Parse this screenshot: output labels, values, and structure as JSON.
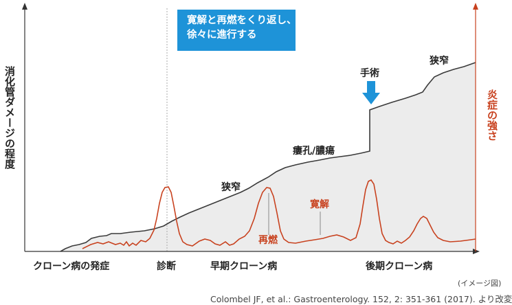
{
  "axes": {
    "y_left_label": "消化管ダメージの程度",
    "y_right_label": "炎症の強さ"
  },
  "callout": {
    "line1": "寛解と再燃をくり返し、",
    "line2": "徐々に進行する"
  },
  "annotations": {
    "surgery": "手術",
    "stenosis_early": "狭窄",
    "stenosis_late": "狭窄",
    "fistula": "瘻孔/膿瘍",
    "relapse": "再燃",
    "remission": "寛解"
  },
  "timeline": {
    "onset": "クローン病の発症",
    "diagnosis": "診断",
    "early": "早期クローン病",
    "late": "後期クローン病"
  },
  "footer": {
    "image_note": "(イメージ図)",
    "citation": "Colombel JF, et al.: Gastroenterology. 152, 2: 351-361 (2017). より改変"
  },
  "colors": {
    "damage_line": "#3a3a3a",
    "damage_fill": "#ececec",
    "inflammation_line": "#c8411e",
    "callout_bg": "#1e93d8",
    "arrow": "#1e93d8"
  }
}
